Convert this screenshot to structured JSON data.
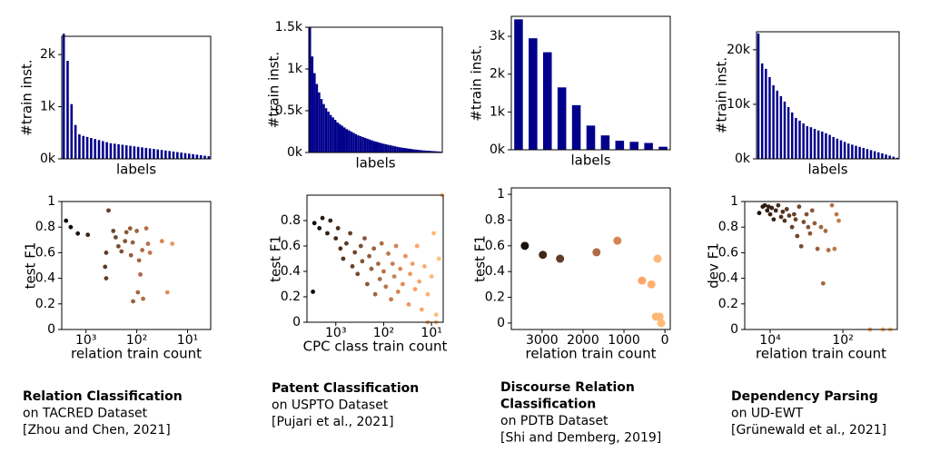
{
  "chart_data": [
    {
      "type": "bar",
      "xlabel": "labels",
      "ylabel": "#train inst.",
      "color": "#00008b",
      "values": [
        2400,
        1880,
        1050,
        650,
        470,
        440,
        420,
        400,
        380,
        360,
        340,
        320,
        300,
        290,
        280,
        270,
        260,
        250,
        240,
        230,
        220,
        210,
        200,
        190,
        180,
        170,
        160,
        150,
        140,
        130,
        120,
        110,
        100,
        90,
        80,
        70,
        60,
        50
      ],
      "ylim": [
        0,
        2350
      ],
      "yticks": [
        {
          "value": 0,
          "label": "0k"
        },
        {
          "value": 1000,
          "label": "1k"
        },
        {
          "value": 2000,
          "label": "2k"
        }
      ]
    },
    {
      "type": "scatter",
      "xlabel": "relation train count",
      "ylabel": "test F1",
      "xscale": "log",
      "colormap": "copper",
      "x": [
        2470,
        2000,
        1450,
        920,
        360,
        400,
        420,
        400,
        290,
        260,
        230,
        200,
        170,
        160,
        135,
        130,
        120,
        100,
        90,
        85,
        78,
        65,
        60,
        118,
        95,
        55,
        75,
        25,
        20,
        32
      ],
      "y": [
        0.85,
        0.8,
        0.75,
        0.74,
        0.93,
        0.6,
        0.49,
        0.4,
        0.77,
        0.72,
        0.65,
        0.61,
        0.69,
        0.76,
        0.79,
        0.58,
        0.68,
        0.77,
        0.54,
        0.43,
        0.62,
        0.79,
        0.67,
        0.22,
        0.29,
        0.6,
        0.24,
        0.29,
        0.67,
        0.69
      ],
      "xlim": [
        3000,
        3.5
      ],
      "ylim": [
        0,
        1
      ],
      "xticks": [
        {
          "value": 1000,
          "label": "10³"
        },
        {
          "value": 100,
          "label": "10²"
        },
        {
          "value": 10,
          "label": "10¹"
        }
      ],
      "yticks": [
        0,
        0.2,
        0.4,
        0.6,
        0.8,
        1
      ]
    },
    {
      "type": "bar",
      "xlabel": "labels",
      "ylabel": "#train inst.",
      "color": "#00008b",
      "values": [
        1500,
        1150,
        950,
        820,
        720,
        640,
        580,
        530,
        490,
        450,
        420,
        390,
        360,
        340,
        320,
        300,
        280,
        265,
        250,
        235,
        220,
        205,
        195,
        185,
        175,
        165,
        155,
        145,
        135,
        128,
        120,
        112,
        105,
        98,
        92,
        86,
        80,
        74,
        68,
        63,
        58,
        54,
        50,
        46,
        42,
        38,
        35,
        32,
        29,
        26,
        24,
        22,
        20,
        18,
        16,
        14,
        12,
        10
      ],
      "ylim": [
        0,
        1500
      ],
      "yticks": [
        {
          "value": 0,
          "label": "0k"
        },
        {
          "value": 500,
          "label": "0.5k"
        },
        {
          "value": 1000,
          "label": "1k"
        },
        {
          "value": 1500,
          "label": "1.5k"
        }
      ]
    },
    {
      "type": "scatter",
      "xlabel": "CPC class train count",
      "ylabel": "test F1",
      "xscale": "log",
      "colormap": "copper",
      "x": [
        2800,
        2200,
        1900,
        1500,
        1300,
        1000,
        900,
        800,
        700,
        600,
        500,
        450,
        400,
        350,
        300,
        280,
        250,
        220,
        200,
        180,
        160,
        150,
        130,
        120,
        110,
        100,
        90,
        80,
        70,
        65,
        60,
        55,
        50,
        45,
        40,
        35,
        30,
        28,
        25,
        22,
        20,
        18,
        16,
        14,
        12,
        10,
        9,
        8,
        7,
        6,
        3000,
        12,
        8
      ],
      "y": [
        0.78,
        0.74,
        0.82,
        0.7,
        0.8,
        0.66,
        0.74,
        0.58,
        0.5,
        0.62,
        0.7,
        0.44,
        0.55,
        0.38,
        0.6,
        0.48,
        0.66,
        0.3,
        0.52,
        0.42,
        0.58,
        0.22,
        0.46,
        0.34,
        0.62,
        0.4,
        0.28,
        0.54,
        0.18,
        0.46,
        0.36,
        0.6,
        0.24,
        0.42,
        0.3,
        0.52,
        0.14,
        0.38,
        0.46,
        0.26,
        0.6,
        0.32,
        0.1,
        0.44,
        0.22,
        0.36,
        0.7,
        0.06,
        0.5,
        1.0,
        0.24,
        0,
        0
      ],
      "xlim": [
        4000,
        5.7
      ],
      "ylim": [
        0,
        1
      ],
      "xticks": [
        {
          "value": 1000,
          "label": "10³"
        },
        {
          "value": 100,
          "label": "10²"
        },
        {
          "value": 10,
          "label": "10¹"
        }
      ],
      "yticks": [
        0,
        0.2,
        0.4,
        0.6,
        0.8
      ]
    },
    {
      "type": "bar",
      "xlabel": "labels",
      "ylabel": "#train inst.",
      "color": "#00008b",
      "values": [
        3450,
        2950,
        2580,
        1650,
        1180,
        640,
        380,
        240,
        210,
        180,
        80
      ],
      "ylim": [
        0,
        3530
      ],
      "yticks": [
        {
          "value": 0,
          "label": "0k"
        },
        {
          "value": 1000,
          "label": "1k"
        },
        {
          "value": 2000,
          "label": "2k"
        },
        {
          "value": 3000,
          "label": "3k"
        }
      ]
    },
    {
      "type": "scatter",
      "xlabel": "relation train count",
      "ylabel": "test F1",
      "colormap": "copper",
      "x": [
        3420,
        2980,
        2560,
        1670,
        1160,
        560,
        330,
        220,
        180,
        130,
        90
      ],
      "y": [
        0.6,
        0.53,
        0.5,
        0.55,
        0.64,
        0.33,
        0.3,
        0.05,
        0.5,
        0.05,
        0
      ],
      "xlim": [
        3750,
        -130
      ],
      "ylim": [
        -0.05,
        1.05
      ],
      "xticks": [
        3000,
        2000,
        1000,
        0
      ],
      "yticks": [
        0,
        0.2,
        0.4,
        0.6,
        0.8,
        1
      ]
    },
    {
      "type": "bar",
      "xlabel": "labels",
      "ylabel": "#train inst.",
      "color": "#00008b",
      "values": [
        23000,
        17500,
        16500,
        15000,
        13500,
        12500,
        11500,
        10500,
        9500,
        8500,
        7500,
        7000,
        6500,
        6000,
        5800,
        5500,
        5200,
        5000,
        4700,
        4400,
        4000,
        3700,
        3400,
        3100,
        2800,
        2600,
        2400,
        2200,
        2000,
        1800,
        1600,
        1400,
        1200,
        1000,
        800,
        600,
        400,
        200
      ],
      "ylim": [
        0,
        23300
      ],
      "yticks": [
        {
          "value": 0,
          "label": "0k"
        },
        {
          "value": 10000,
          "label": "10k"
        },
        {
          "value": 20000,
          "label": "20k"
        }
      ]
    },
    {
      "type": "scatter",
      "xlabel": "relation train count",
      "ylabel": "dev F1",
      "xscale": "log",
      "colormap": "copper",
      "x": [
        20000,
        16000,
        14000,
        12000,
        11000,
        10000,
        9000,
        8000,
        7000,
        6000,
        5000,
        4500,
        4000,
        3500,
        3000,
        2500,
        2200,
        2000,
        1800,
        1600,
        1400,
        1200,
        1000,
        900,
        800,
        700,
        600,
        500,
        400,
        350,
        300,
        250,
        200,
        170,
        150,
        130,
        18,
        8,
        5
      ],
      "y": [
        0.91,
        0.96,
        0.97,
        0.93,
        0.96,
        0.9,
        0.95,
        0.86,
        0.93,
        0.97,
        0.88,
        0.92,
        0.85,
        0.94,
        0.89,
        0.8,
        0.9,
        0.86,
        0.73,
        0.96,
        0.65,
        0.84,
        0.9,
        0.8,
        0.75,
        0.93,
        0.83,
        0.63,
        0.8,
        0.36,
        0.77,
        0.62,
        0.97,
        0.63,
        0.9,
        0.85,
        0,
        0,
        0
      ],
      "xlim": [
        50000,
        3.2
      ],
      "ylim": [
        0,
        1
      ],
      "xticks": [
        {
          "value": 10000,
          "label": "10⁴"
        },
        {
          "value": 100,
          "label": "10²"
        }
      ],
      "yticks": [
        0,
        0.2,
        0.4,
        0.6,
        0.8,
        1
      ]
    }
  ],
  "captions": [
    {
      "lines": [
        {
          "text": "Relation Classification",
          "bold": true
        },
        {
          "text": "on TACRED Dataset",
          "bold": false
        },
        {
          "text": "[Zhou and Chen, 2021]",
          "bold": false
        }
      ]
    },
    {
      "lines": [
        {
          "text": "Patent Classification",
          "bold": true
        },
        {
          "text": "on USPTO Dataset",
          "bold": false
        },
        {
          "text": "[Pujari et al., 2021]",
          "bold": false
        }
      ]
    },
    {
      "lines": [
        {
          "text": "Discourse Relation",
          "bold": true
        },
        {
          "text": "Classification",
          "bold": true
        },
        {
          "text": "on PDTB Dataset",
          "bold": false
        },
        {
          "text": "[Shi and Demberg, 2019]",
          "bold": false
        }
      ]
    },
    {
      "lines": [
        {
          "text": "Dependency Parsing",
          "bold": true
        },
        {
          "text": "on UD-EWT",
          "bold": false
        },
        {
          "text": "[Grünewald et al., 2021]",
          "bold": false
        }
      ]
    }
  ]
}
